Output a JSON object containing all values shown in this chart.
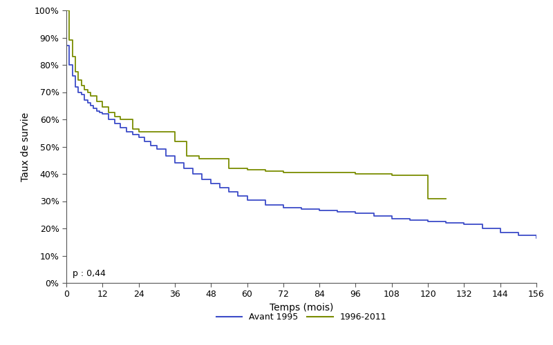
{
  "title": "",
  "xlabel": "Temps (mois)",
  "ylabel": "Taux de survie",
  "xlim": [
    0,
    156
  ],
  "ylim": [
    0.0,
    1.0
  ],
  "xticks": [
    0,
    12,
    24,
    36,
    48,
    60,
    72,
    84,
    96,
    108,
    120,
    132,
    144,
    156
  ],
  "yticks": [
    0.0,
    0.1,
    0.2,
    0.3,
    0.4,
    0.5,
    0.6,
    0.7,
    0.8,
    0.9,
    1.0
  ],
  "ytick_labels": [
    "0%",
    "10%",
    "20%",
    "30%",
    "40%",
    "50%",
    "60%",
    "70%",
    "80%",
    "90%",
    "100%"
  ],
  "pvalue_text": "p : 0,44",
  "color_avant1995": "#3B4BC8",
  "color_1996_2011": "#7a8c00",
  "legend_label1": "Avant 1995",
  "legend_label2": "1996-2011",
  "background_color": "#ffffff",
  "curve_avant1995_x": [
    0,
    1,
    2,
    3,
    4,
    5,
    6,
    7,
    8,
    9,
    10,
    11,
    12,
    14,
    16,
    18,
    20,
    22,
    24,
    26,
    28,
    30,
    33,
    36,
    39,
    42,
    45,
    48,
    51,
    54,
    57,
    60,
    66,
    72,
    78,
    84,
    90,
    96,
    102,
    108,
    114,
    120,
    126,
    132,
    138,
    144,
    150,
    156
  ],
  "curve_avant1995_y": [
    0.87,
    0.8,
    0.76,
    0.72,
    0.7,
    0.69,
    0.67,
    0.66,
    0.65,
    0.64,
    0.63,
    0.625,
    0.62,
    0.6,
    0.585,
    0.57,
    0.555,
    0.545,
    0.535,
    0.52,
    0.505,
    0.49,
    0.465,
    0.44,
    0.42,
    0.4,
    0.38,
    0.365,
    0.35,
    0.335,
    0.32,
    0.305,
    0.285,
    0.275,
    0.27,
    0.265,
    0.26,
    0.255,
    0.245,
    0.235,
    0.23,
    0.225,
    0.22,
    0.215,
    0.2,
    0.185,
    0.175,
    0.165
  ],
  "curve_1996_2011_x": [
    0,
    1,
    2,
    3,
    4,
    5,
    6,
    7,
    8,
    10,
    12,
    14,
    16,
    18,
    22,
    24,
    36,
    40,
    44,
    48,
    54,
    60,
    66,
    72,
    84,
    96,
    108,
    114,
    120,
    126
  ],
  "curve_1996_2011_y": [
    1.0,
    0.89,
    0.83,
    0.775,
    0.745,
    0.725,
    0.71,
    0.7,
    0.685,
    0.665,
    0.645,
    0.625,
    0.61,
    0.6,
    0.565,
    0.555,
    0.52,
    0.465,
    0.455,
    0.455,
    0.42,
    0.415,
    0.41,
    0.405,
    0.405,
    0.4,
    0.395,
    0.395,
    0.31,
    0.31
  ]
}
